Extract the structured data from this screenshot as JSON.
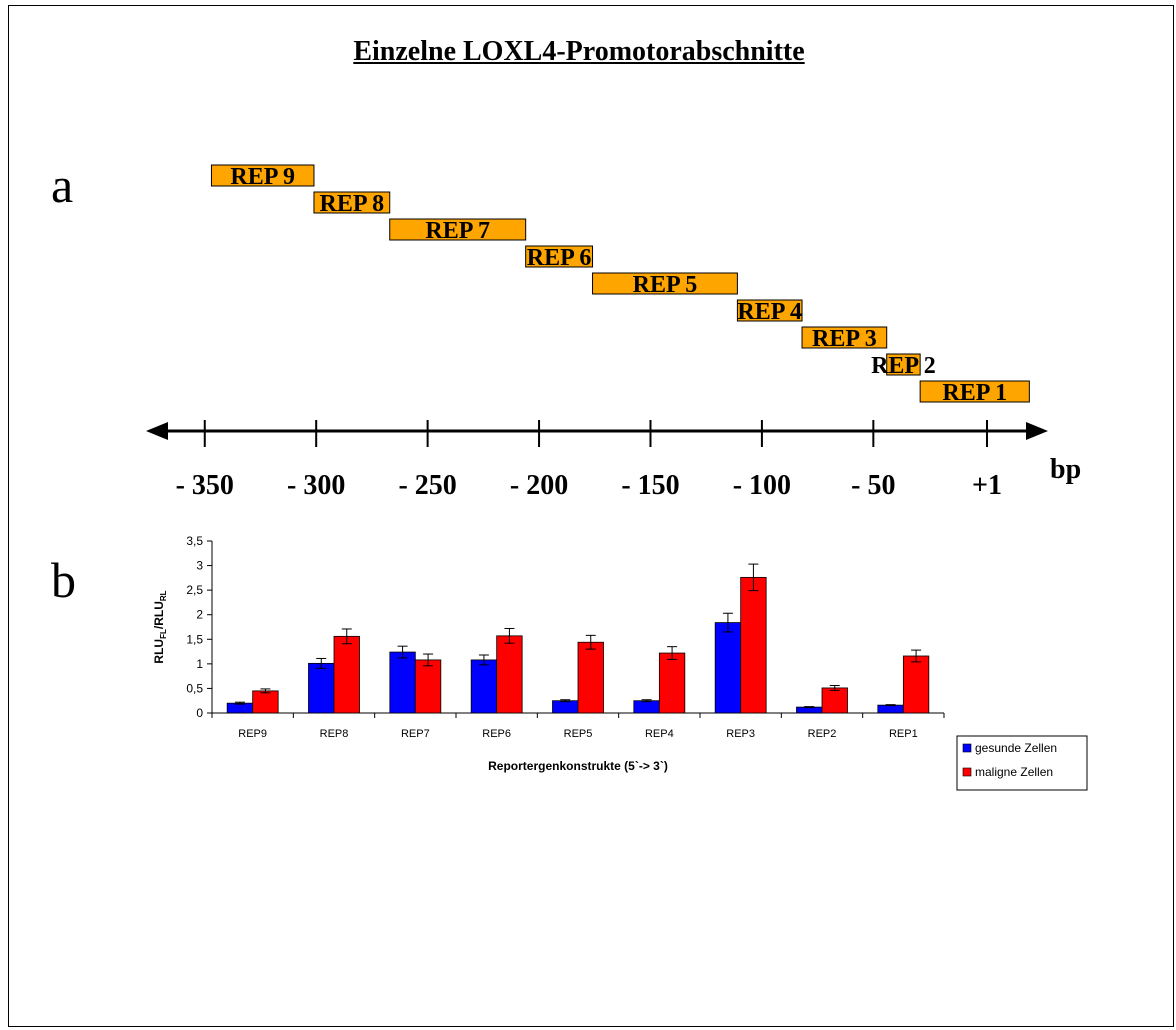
{
  "title": "Einzelne LOXL4-Promotorabschnitte",
  "panel_a": {
    "label": "a",
    "unit": "bp",
    "ticks": [
      {
        "value": -350,
        "label": "- 350"
      },
      {
        "value": -300,
        "label": "- 300"
      },
      {
        "value": -250,
        "label": "- 250"
      },
      {
        "value": -200,
        "label": "- 200"
      },
      {
        "value": -150,
        "label": "- 150"
      },
      {
        "value": -100,
        "label": "- 100"
      },
      {
        "value": -50,
        "label": "- 50"
      },
      {
        "value": 1,
        "label": "+1"
      }
    ],
    "segments": [
      {
        "label": "REP 9",
        "start": -347,
        "end": -301
      },
      {
        "label": "REP 8",
        "start": -301,
        "end": -267
      },
      {
        "label": "REP 7",
        "start": -267,
        "end": -206
      },
      {
        "label": "REP 6",
        "start": -206,
        "end": -176
      },
      {
        "label": "REP 5",
        "start": -176,
        "end": -111
      },
      {
        "label": "REP 4",
        "start": -111,
        "end": -82
      },
      {
        "label": "REP 3",
        "start": -82,
        "end": -44
      },
      {
        "label": "REP 2",
        "start": -44,
        "end": -29
      },
      {
        "label": "REP 1",
        "start": -29,
        "end": 20
      }
    ],
    "segment_color": "#ffa500"
  },
  "panel_b": {
    "label": "b",
    "chart_data": {
      "type": "bar",
      "categories": [
        "REP9",
        "REP8",
        "REP7",
        "REP6",
        "REP5",
        "REP4",
        "REP3",
        "REP2",
        "REP1"
      ],
      "series": [
        {
          "name": "gesunde Zellen",
          "color": "#0000ff",
          "values": [
            0.2,
            1.01,
            1.24,
            1.08,
            0.25,
            0.25,
            1.84,
            0.12,
            0.16
          ],
          "errors": [
            0.02,
            0.1,
            0.12,
            0.1,
            0.02,
            0.02,
            0.19,
            0.01,
            0.01
          ]
        },
        {
          "name": "maligne Zellen",
          "color": "#ff0000",
          "values": [
            0.45,
            1.56,
            1.08,
            1.57,
            1.44,
            1.22,
            2.76,
            0.51,
            1.16
          ],
          "errors": [
            0.04,
            0.15,
            0.12,
            0.15,
            0.14,
            0.13,
            0.27,
            0.05,
            0.12
          ]
        }
      ],
      "xlabel": "Reportergenkonstrukte (5`-> 3`)",
      "ylabel_main": "RLU",
      "ylabel_sub1": "FL",
      "ylabel_sep": "/RLU",
      "ylabel_sub2": "RL",
      "ylim": [
        0,
        3.5
      ],
      "yticks": [
        {
          "value": 0,
          "label": "0"
        },
        {
          "value": 0.5,
          "label": "0,5"
        },
        {
          "value": 1,
          "label": "1"
        },
        {
          "value": 1.5,
          "label": "1,5"
        },
        {
          "value": 2,
          "label": "2"
        },
        {
          "value": 2.5,
          "label": "2,5"
        },
        {
          "value": 3,
          "label": "3"
        },
        {
          "value": 3.5,
          "label": "3,5"
        }
      ],
      "legend_position": "right"
    }
  }
}
